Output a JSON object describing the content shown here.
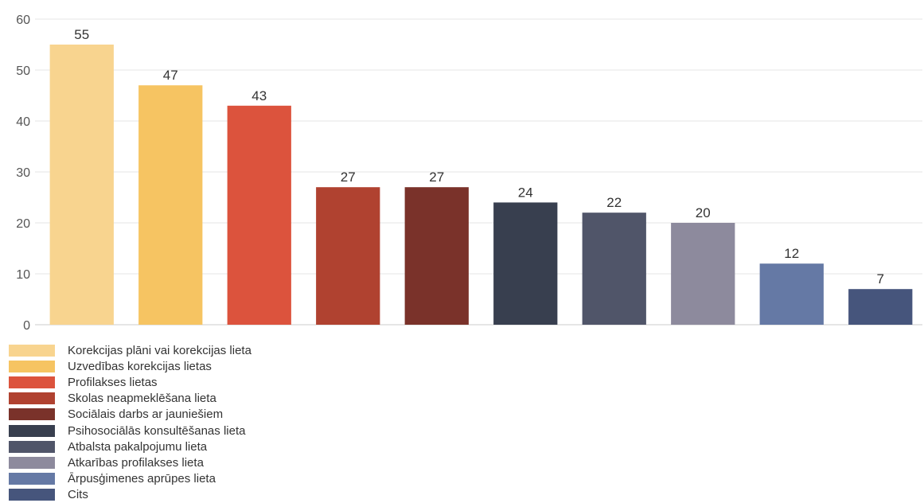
{
  "chart_data": {
    "type": "bar",
    "categories": [
      "Korekcijas plāni vai korekcijas lieta",
      "Uzvedības korekcijas lietas",
      "Profilakses lietas",
      "Skolas neapmeklēšana lieta",
      "Sociālais darbs ar jauniešiem",
      "Psihosociālās konsultēšanas lieta",
      "Atbalsta pakalpojumu lieta",
      "Atkarības profilakses lieta",
      "Ārpusģimenes aprūpes lieta",
      "Cits"
    ],
    "values": [
      55,
      47,
      43,
      27,
      27,
      24,
      22,
      20,
      12,
      7
    ],
    "colors": [
      "#f8d48f",
      "#f6c462",
      "#dc533d",
      "#b04230",
      "#7a322a",
      "#383f4f",
      "#505569",
      "#8d8a9d",
      "#6579a5",
      "#46557c"
    ],
    "ylim": [
      0,
      60
    ],
    "yticks": [
      0,
      10,
      20,
      30,
      40,
      50,
      60
    ],
    "grid": true,
    "legend_position": "bottom-left",
    "data_labels": true
  }
}
